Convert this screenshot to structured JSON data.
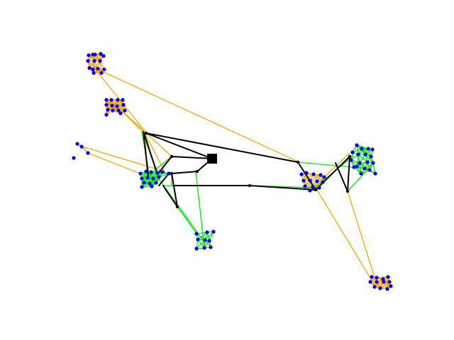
{
  "diagram": {
    "type": "network-graph",
    "colors": {
      "background": "#ffffff",
      "node": "#0000ff",
      "hub": "#000000",
      "edge_black": "#000000",
      "edge_green": "#00ee00",
      "edge_orange": "#ffa500"
    }
  }
}
